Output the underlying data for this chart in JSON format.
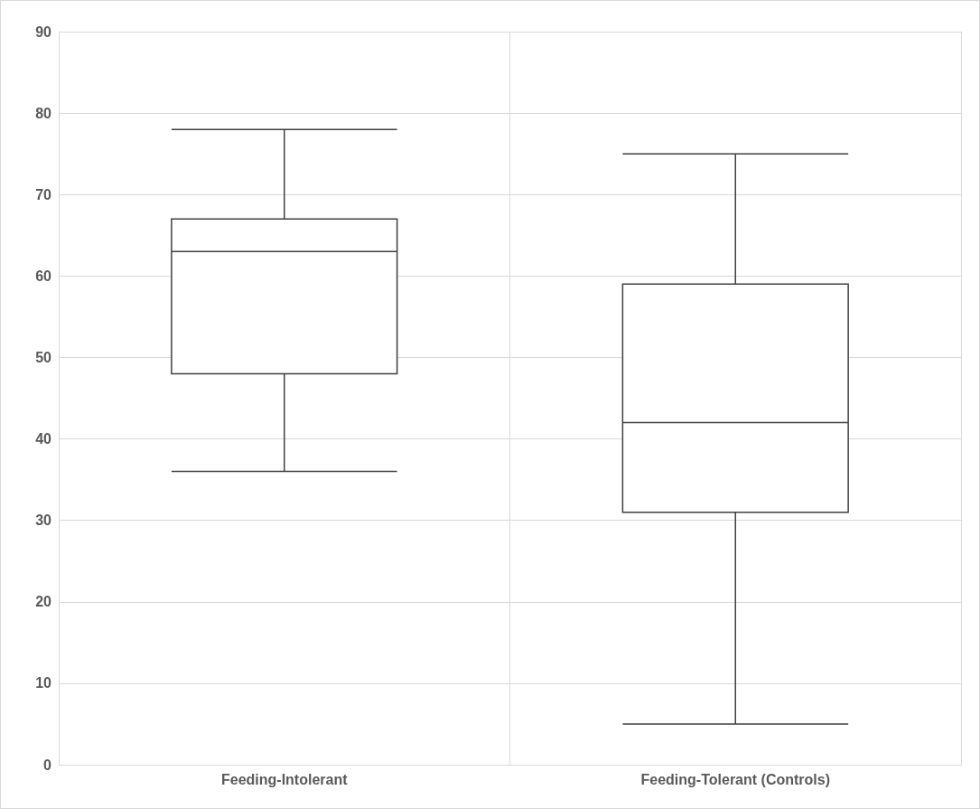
{
  "chart_data": {
    "type": "box",
    "categories": [
      "Feeding-Intolerant",
      "Feeding-Tolerant (Controls)"
    ],
    "boxes": [
      {
        "low": 36,
        "q1": 48,
        "median": 63,
        "q3": 67,
        "high": 78
      },
      {
        "low": 5,
        "q1": 31,
        "median": 42,
        "q3": 59,
        "high": 75
      }
    ],
    "ylim": [
      0,
      90
    ],
    "yticks": [
      0,
      10,
      20,
      30,
      40,
      50,
      60,
      70,
      80,
      90
    ],
    "grid": true
  }
}
